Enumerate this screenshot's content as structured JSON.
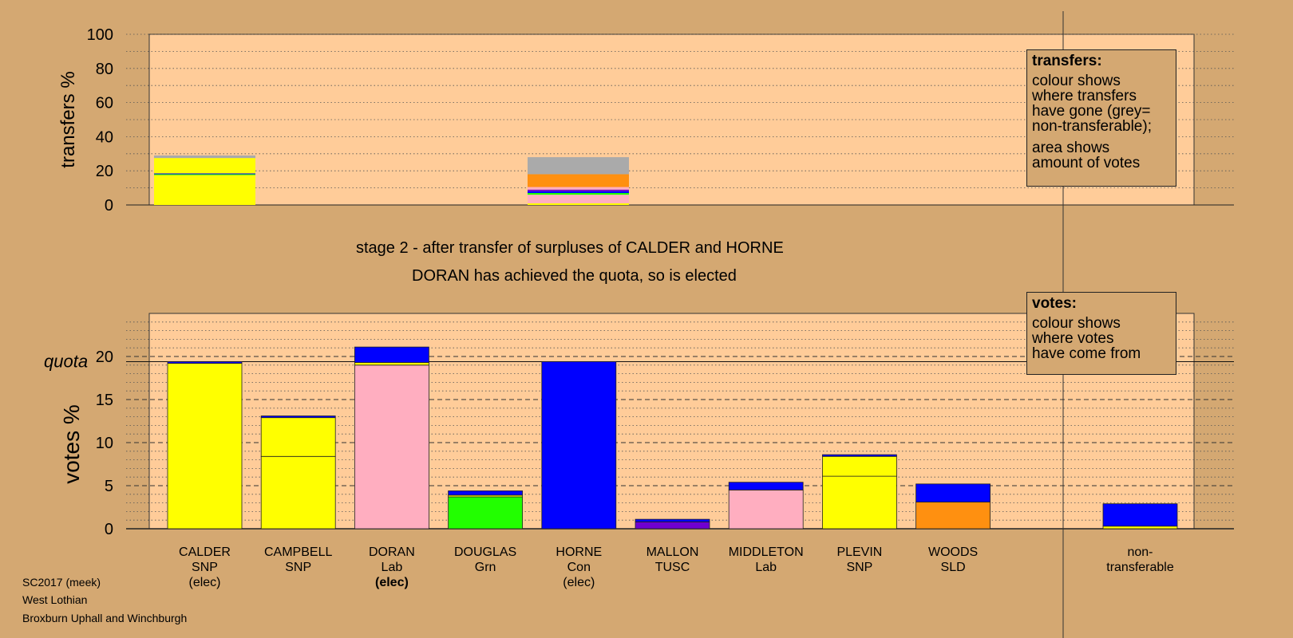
{
  "subtitle": {
    "line1": "stage 2 - after transfer of surpluses of CALDER and HORNE",
    "line2": "DORAN has achieved the quota, so is elected"
  },
  "credits": {
    "line1": "SC2017 (meek)",
    "line2": "West Lothian",
    "line3": "Broxburn Uphall and Winchburgh"
  },
  "legend_transfers": {
    "title": "transfers:",
    "lines": [
      "colour shows",
      "where transfers",
      "have gone (grey=",
      "non-transferable);"
    ],
    "lines2": [
      "area shows",
      "amount of votes"
    ]
  },
  "legend_votes": {
    "title": "votes:",
    "lines": [
      "colour shows",
      "where votes",
      "have come from"
    ]
  },
  "colors": {
    "background": "#d4a872",
    "plot_area": "#ffcc99",
    "SNP": "#ffff00",
    "Lab": "#ffaec0",
    "Con": "#0000ff",
    "Grn": "#22ff00",
    "TUSC": "#7000d0",
    "SLD": "#ff9010",
    "non_transferable": "#aaaaaa"
  },
  "chart_data": [
    {
      "type": "bar",
      "ylabel": "transfers %",
      "ylim": [
        0,
        100
      ],
      "yticks": [
        0,
        20,
        40,
        60,
        80,
        100
      ],
      "grid": "dotted",
      "bars": [
        {
          "category": "CALDER",
          "segments": [
            {
              "source": "SNP",
              "value": 17.5
            },
            {
              "source": "Grn",
              "value": 0.5
            },
            {
              "source": "Con",
              "value": 0.5
            },
            {
              "source": "SNP",
              "value": 9.0
            },
            {
              "source": "non_transferable",
              "value": 1.5
            }
          ]
        },
        {
          "category": "HORNE",
          "segments": [
            {
              "source": "SNP",
              "value": 1.0
            },
            {
              "source": "Lab",
              "value": 5.0
            },
            {
              "source": "Grn",
              "value": 1.0
            },
            {
              "source": "Con",
              "value": 1.0
            },
            {
              "source": "TUSC",
              "value": 1.0
            },
            {
              "source": "Lab",
              "value": 1.5
            },
            {
              "source": "SLD",
              "value": 7.5
            },
            {
              "source": "non_transferable",
              "value": 10.0
            }
          ]
        }
      ]
    },
    {
      "type": "bar",
      "ylabel": "votes %",
      "ylim": [
        0,
        25
      ],
      "yticks": [
        0,
        5,
        10,
        15,
        20
      ],
      "quota": 19.4,
      "quota_label": "quota",
      "grid": "dotted",
      "categories": [
        {
          "line1": "CALDER",
          "line2": "SNP",
          "line3": "(elec)",
          "bold3": false
        },
        {
          "line1": "CAMPBELL",
          "line2": "SNP",
          "line3": "",
          "bold3": false
        },
        {
          "line1": "DORAN",
          "line2": "Lab",
          "line3": "(elec)",
          "bold3": true
        },
        {
          "line1": "DOUGLAS",
          "line2": "Grn",
          "line3": "",
          "bold3": false
        },
        {
          "line1": "HORNE",
          "line2": "Con",
          "line3": "(elec)",
          "bold3": false
        },
        {
          "line1": "MALLON",
          "line2": "TUSC",
          "line3": "",
          "bold3": false
        },
        {
          "line1": "MIDDLETON",
          "line2": "Lab",
          "line3": "",
          "bold3": false
        },
        {
          "line1": "PLEVIN",
          "line2": "SNP",
          "line3": "",
          "bold3": false
        },
        {
          "line1": "WOODS",
          "line2": "SLD",
          "line3": "",
          "bold3": false
        },
        {
          "line1": "non-",
          "line2": "transferable",
          "line3": "",
          "bold3": false
        }
      ],
      "bars": [
        {
          "category": "CALDER",
          "slot": 0,
          "segments": [
            {
              "source": "SNP",
              "value": 19.2
            },
            {
              "source": "Con",
              "value": 0.2
            }
          ]
        },
        {
          "category": "CAMPBELL",
          "slot": 1,
          "segments": [
            {
              "source": "SNP",
              "value": 8.4
            },
            {
              "source": "SNP",
              "value": 4.5
            },
            {
              "source": "Con",
              "value": 0.2
            }
          ]
        },
        {
          "category": "DORAN",
          "slot": 2,
          "segments": [
            {
              "source": "Lab",
              "value": 19.0
            },
            {
              "source": "SNP",
              "value": 0.3
            },
            {
              "source": "Con",
              "value": 1.8
            }
          ]
        },
        {
          "category": "DOUGLAS",
          "slot": 3,
          "segments": [
            {
              "source": "Grn",
              "value": 3.7
            },
            {
              "source": "SNP",
              "value": 0.2
            },
            {
              "source": "Con",
              "value": 0.5
            }
          ]
        },
        {
          "category": "HORNE",
          "slot": 4,
          "segments": [
            {
              "source": "Con",
              "value": 19.4
            }
          ]
        },
        {
          "category": "MALLON",
          "slot": 5,
          "segments": [
            {
              "source": "TUSC",
              "value": 0.8
            },
            {
              "source": "Con",
              "value": 0.3
            }
          ]
        },
        {
          "category": "MIDDLETON",
          "slot": 6,
          "segments": [
            {
              "source": "Lab",
              "value": 4.5
            },
            {
              "source": "Con",
              "value": 0.9
            }
          ]
        },
        {
          "category": "PLEVIN",
          "slot": 7,
          "segments": [
            {
              "source": "SNP",
              "value": 6.1
            },
            {
              "source": "SNP",
              "value": 2.3
            },
            {
              "source": "Con",
              "value": 0.2
            }
          ]
        },
        {
          "category": "WOODS",
          "slot": 8,
          "segments": [
            {
              "source": "SLD",
              "value": 3.1
            },
            {
              "source": "Con",
              "value": 2.1
            }
          ]
        },
        {
          "category": "non-transferable",
          "slot": 10,
          "segments": [
            {
              "source": "SNP",
              "value": 0.3
            },
            {
              "source": "Con",
              "value": 2.6
            }
          ]
        }
      ]
    }
  ]
}
